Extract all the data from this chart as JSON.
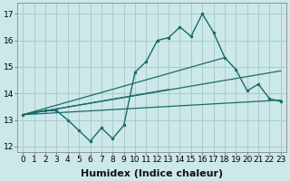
{
  "title": "",
  "xlabel": "Humidex (Indice chaleur)",
  "ylabel": "",
  "bg_color": "#cce8e8",
  "grid_color": "#aacccc",
  "line_color": "#1a6b6b",
  "xlim": [
    -0.5,
    23.5
  ],
  "ylim": [
    11.8,
    17.4
  ],
  "yticks": [
    12,
    13,
    14,
    15,
    16,
    17
  ],
  "xticks": [
    0,
    1,
    2,
    3,
    4,
    5,
    6,
    7,
    8,
    9,
    10,
    11,
    12,
    13,
    14,
    15,
    16,
    17,
    18,
    19,
    20,
    21,
    22,
    23
  ],
  "xtick_labels": [
    "0",
    "1",
    "2",
    "3",
    "4",
    "5",
    "6",
    "7",
    "8",
    "9",
    "10",
    "11",
    "12",
    "13",
    "14",
    "15",
    "16",
    "17",
    "18",
    "19",
    "20",
    "21",
    "22",
    "23"
  ],
  "main_line_x": [
    0,
    1,
    2,
    3,
    4,
    5,
    6,
    7,
    8,
    9,
    10,
    11,
    12,
    13,
    14,
    15,
    16,
    17,
    18,
    19,
    20,
    21,
    22,
    23
  ],
  "main_line_y": [
    13.2,
    13.3,
    13.35,
    13.35,
    13.0,
    12.6,
    12.2,
    12.7,
    12.3,
    12.8,
    14.8,
    15.2,
    16.0,
    16.1,
    16.5,
    16.15,
    17.0,
    16.3,
    15.35,
    14.9,
    14.1,
    14.35,
    13.8,
    13.7
  ],
  "trend_lines": [
    {
      "x": [
        0,
        23
      ],
      "y": [
        13.2,
        13.75
      ]
    },
    {
      "x": [
        0,
        23
      ],
      "y": [
        13.2,
        14.85
      ]
    },
    {
      "x": [
        0,
        18
      ],
      "y": [
        13.2,
        15.35
      ]
    },
    {
      "x": [
        0,
        13
      ],
      "y": [
        13.2,
        14.15
      ]
    }
  ],
  "xlabel_fontsize": 8,
  "tick_fontsize": 6.5
}
